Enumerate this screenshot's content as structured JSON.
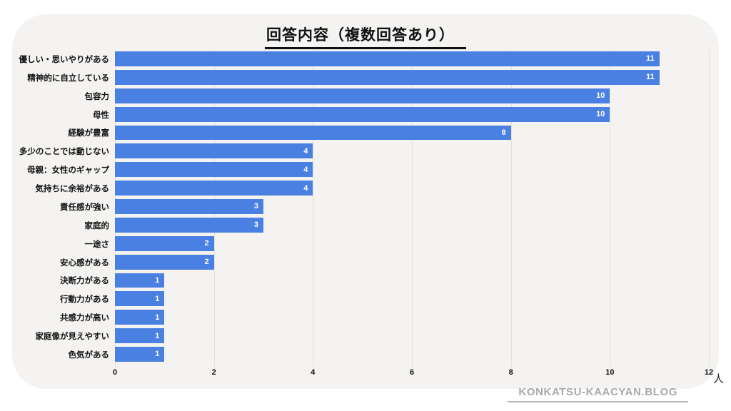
{
  "title": "回答内容（複数回答あり）",
  "unit_label": "人",
  "watermark": "KONKATSU-KAACYAN.BLOG",
  "colors": {
    "page_background": "#ffffff",
    "card_background": "#f4f3f1",
    "bar": "#4a80e1",
    "gridline": "#e3e1de",
    "title_text": "#111111",
    "value_text": "#ffffff",
    "watermark_text": "#a8a8a8"
  },
  "chart_data": {
    "type": "bar",
    "orientation": "horizontal",
    "title": "回答内容（複数回答あり）",
    "categories": [
      "優しい・思いやりがある",
      "精神的に自立している",
      "包容力",
      "母性",
      "経験が豊富",
      "多少のことでは動じない",
      "母親：女性のギャップ",
      "気持ちに余裕がある",
      "責任感が強い",
      "家庭的",
      "一途さ",
      "安心感がある",
      "決断力がある",
      "行動力がある",
      "共感力が高い",
      "家庭像が見えやすい",
      "色気がある"
    ],
    "values": [
      11,
      11,
      10,
      10,
      8,
      4,
      4,
      4,
      3,
      3,
      2,
      2,
      1,
      1,
      1,
      1,
      1
    ],
    "xlabel": "人",
    "ylabel": "",
    "xlim": [
      0,
      12
    ],
    "xticks": [
      0,
      2,
      4,
      6,
      8,
      10,
      12
    ],
    "grid": true,
    "legend": false,
    "value_labels_position": "inside-end"
  }
}
